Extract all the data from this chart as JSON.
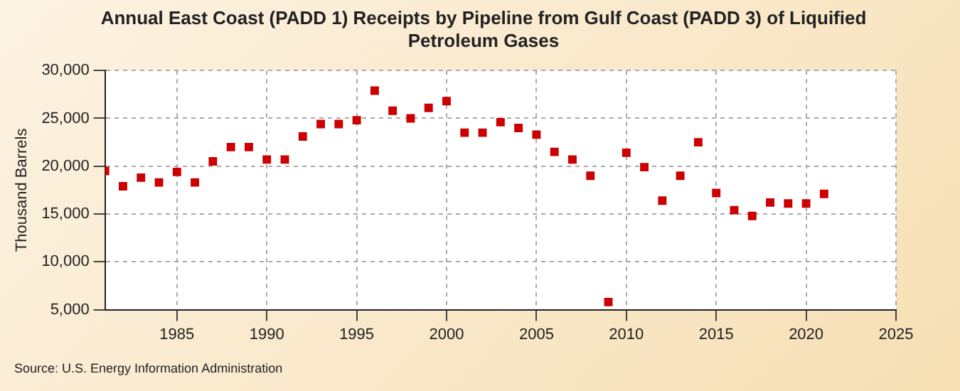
{
  "chart_data": {
    "type": "scatter",
    "title": "Annual East Coast (PADD 1) Receipts by Pipeline from Gulf Coast (PADD 3) of Liquified Petroleum Gases",
    "ylabel": "Thousand Barrels",
    "annotations": [
      "Source: U.S. Energy Information Administration"
    ],
    "x": [
      1981,
      1982,
      1983,
      1984,
      1985,
      1986,
      1987,
      1988,
      1989,
      1990,
      1991,
      1992,
      1993,
      1994,
      1995,
      1996,
      1997,
      1998,
      1999,
      2000,
      2001,
      2002,
      2003,
      2004,
      2005,
      2006,
      2007,
      2008,
      2009,
      2010,
      2011,
      2012,
      2013,
      2014,
      2015,
      2016,
      2017,
      2018,
      2019,
      2020,
      2021
    ],
    "series": [
      {
        "color": "#cc0000",
        "values": [
          19500,
          17900,
          18800,
          18300,
          19400,
          18300,
          20500,
          22000,
          22000,
          20700,
          20700,
          23100,
          24400,
          24400,
          24800,
          27900,
          25800,
          25000,
          26100,
          26800,
          23500,
          23500,
          24600,
          24000,
          23300,
          21500,
          20700,
          19000,
          5800,
          21400,
          19900,
          16400,
          19000,
          22500,
          17200,
          15400,
          14800,
          16200,
          16100,
          16100,
          17100
        ]
      }
    ],
    "xlim": [
      1981,
      2025
    ],
    "xticks": [
      1985,
      1990,
      1995,
      2000,
      2005,
      2010,
      2015,
      2020,
      2025
    ],
    "ylim": [
      5000,
      30000
    ],
    "yticks": [
      {
        "value": 5000,
        "label": "5,000"
      },
      {
        "value": 10000,
        "label": "10,000"
      },
      {
        "value": 15000,
        "label": "15,000"
      },
      {
        "value": 20000,
        "label": "20,000"
      },
      {
        "value": 25000,
        "label": "25,000"
      },
      {
        "value": 30000,
        "label": "30,000"
      }
    ],
    "grid": true,
    "legend": false,
    "marker": "square"
  }
}
